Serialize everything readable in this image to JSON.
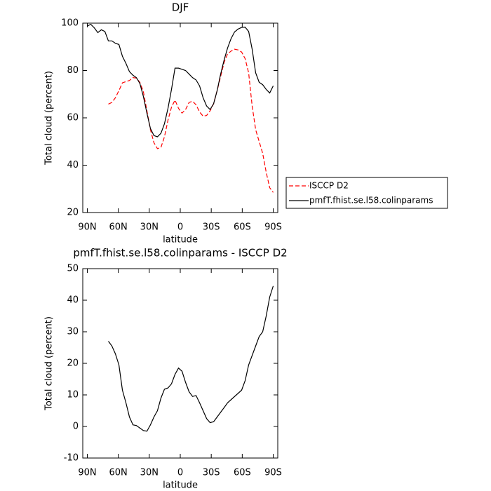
{
  "chart_data": [
    {
      "type": "line",
      "title": "DJF",
      "x_label": "latitude",
      "y_label": "Total cloud (percent)",
      "x": [
        90,
        86.6,
        83.2,
        79.8,
        76.4,
        73.0,
        69.6,
        66.2,
        62.8,
        59.4,
        56.0,
        52.6,
        49.2,
        45.8,
        42.5,
        39.1,
        35.7,
        32.3,
        28.9,
        25.5,
        22.1,
        18.7,
        15.3,
        11.9,
        8.5,
        5.1,
        1.7,
        -1.7,
        -5.1,
        -8.5,
        -11.9,
        -15.3,
        -18.7,
        -22.1,
        -25.5,
        -28.9,
        -32.3,
        -35.7,
        -39.1,
        -42.5,
        -45.8,
        -49.2,
        -52.6,
        -56.0,
        -59.4,
        -62.8,
        -66.2,
        -69.6,
        -73.0,
        -76.4,
        -79.8,
        -83.2,
        -86.6,
        -90
      ],
      "xlim": [
        94.4,
        -94.4
      ],
      "xticks": [
        {
          "value": 90,
          "label": "90N"
        },
        {
          "value": 60,
          "label": "60N"
        },
        {
          "value": 30,
          "label": "30N"
        },
        0,
        {
          "value": -30,
          "label": "30S"
        },
        {
          "value": -60,
          "label": "60S"
        },
        {
          "value": -90,
          "label": "90S"
        }
      ],
      "ylim": [
        20,
        100
      ],
      "yticks": [
        20,
        40,
        60,
        80,
        100
      ],
      "legend": "right",
      "series": [
        {
          "name": "ISCCP D2",
          "color": "#ff0000",
          "dashed": true,
          "values": [
            null,
            null,
            null,
            null,
            null,
            null,
            65.8,
            66.5,
            68.5,
            71.5,
            74.8,
            75.3,
            75.8,
            77,
            76.8,
            75,
            71,
            63,
            55,
            49.5,
            47,
            47.5,
            52,
            59,
            64.5,
            67.5,
            64,
            62,
            63.5,
            66.5,
            67,
            65.5,
            62.5,
            60.7,
            61,
            63,
            66,
            71.5,
            77.5,
            83.5,
            87,
            88.2,
            89,
            88.7,
            87.8,
            85,
            79,
            65,
            55,
            50,
            45,
            37,
            30.5,
            28.5
          ]
        },
        {
          "name": "pmfT.fhist.se.l58.colinparams",
          "color": "#000000",
          "dashed": false,
          "values": [
            98.8,
            99.5,
            98,
            96,
            97.2,
            96.5,
            92.5,
            92.5,
            91.5,
            91,
            86,
            83,
            79.5,
            78,
            77,
            74.5,
            69,
            62,
            55.5,
            52.5,
            52,
            53.5,
            57.5,
            64,
            72,
            81,
            81,
            80.5,
            80,
            78.5,
            77,
            76,
            73.5,
            68.5,
            65,
            63.5,
            66,
            71.5,
            78.5,
            84.5,
            89.5,
            93.5,
            96.3,
            97.5,
            98.2,
            98.3,
            96.5,
            89,
            79,
            75,
            74,
            72,
            70.5,
            73.5
          ]
        }
      ]
    },
    {
      "type": "line",
      "title": "pmfT.fhist.se.l58.colinparams - ISCCP D2",
      "x_label": "latitude",
      "y_label": "Total cloud (percent)",
      "x": [
        90,
        86.6,
        83.2,
        79.8,
        76.4,
        73.0,
        69.6,
        66.2,
        62.8,
        59.4,
        56.0,
        52.6,
        49.2,
        45.8,
        42.5,
        39.1,
        35.7,
        32.3,
        28.9,
        25.5,
        22.1,
        18.7,
        15.3,
        11.9,
        8.5,
        5.1,
        1.7,
        -1.7,
        -5.1,
        -8.5,
        -11.9,
        -15.3,
        -18.7,
        -22.1,
        -25.5,
        -28.9,
        -32.3,
        -35.7,
        -39.1,
        -42.5,
        -45.8,
        -49.2,
        -52.6,
        -56.0,
        -59.4,
        -62.8,
        -66.2,
        -69.6,
        -73.0,
        -76.4,
        -79.8,
        -83.2,
        -86.6,
        -90
      ],
      "xlim": [
        94.4,
        -94.4
      ],
      "xticks": [
        {
          "value": 90,
          "label": "90N"
        },
        {
          "value": 60,
          "label": "60N"
        },
        {
          "value": 30,
          "label": "30N"
        },
        0,
        {
          "value": -30,
          "label": "30S"
        },
        {
          "value": -60,
          "label": "60S"
        },
        {
          "value": -90,
          "label": "90S"
        }
      ],
      "ylim": [
        -10,
        50
      ],
      "yticks": [
        -10,
        0,
        10,
        20,
        30,
        40,
        50
      ],
      "series": [
        {
          "color": "#000000",
          "dashed": false,
          "values": [
            null,
            null,
            null,
            null,
            null,
            null,
            27,
            25.5,
            23,
            19.5,
            11.5,
            7.5,
            3,
            0.5,
            0.3,
            -0.5,
            -1.3,
            -1.5,
            0.5,
            3,
            5,
            9,
            11.8,
            12.2,
            13.5,
            16.5,
            18.5,
            17.5,
            14,
            11,
            9.5,
            9.8,
            7.5,
            5,
            2.5,
            1.2,
            1.5,
            3,
            4.5,
            6,
            7.5,
            8.5,
            9.5,
            10.5,
            11.5,
            14.5,
            19.5,
            22.5,
            25.5,
            28.5,
            30,
            35,
            41,
            44.5
          ]
        }
      ]
    }
  ]
}
